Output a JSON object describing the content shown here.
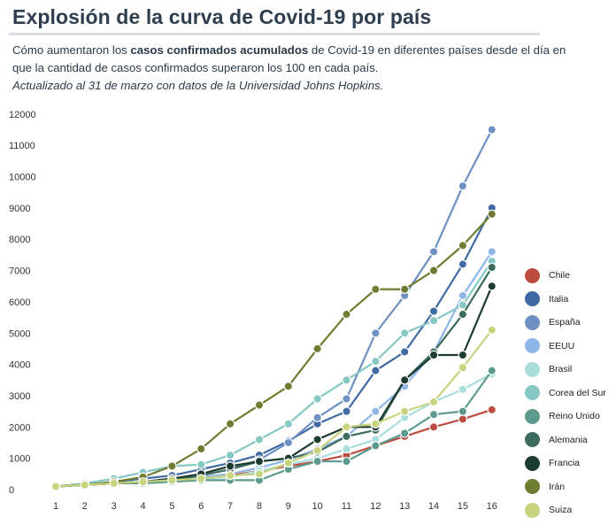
{
  "header": {
    "title": "Explosión de la curva de Covid-19 por país",
    "subtitle_before": "Cómo aumentaron los ",
    "subtitle_bold": "casos confirmados acumulados",
    "subtitle_after": " de Covid-19 en diferentes países desde el día en que la cantidad de casos confirmados superaron los 100 en cada país.",
    "updated": "Actualizado al 31 de marzo con datos de la Universidad Johns Hopkins."
  },
  "chart_data": {
    "type": "line",
    "title": "Explosión de la curva de Covid-19 por país",
    "xlabel": "",
    "ylabel": "",
    "x": [
      1,
      2,
      3,
      4,
      5,
      6,
      7,
      8,
      9,
      10,
      11,
      12,
      13,
      14,
      15,
      16
    ],
    "ylim": [
      0,
      12000
    ],
    "yticks": [
      0,
      1000,
      2000,
      3000,
      4000,
      5000,
      6000,
      7000,
      8000,
      9000,
      10000,
      11000,
      12000
    ],
    "grid": false,
    "legend_position": "right",
    "series": [
      {
        "name": "Chile",
        "color": "#bd4b3f",
        "values": [
          100,
          150,
          200,
          250,
          300,
          350,
          450,
          600,
          750,
          900,
          1100,
          1400,
          1700,
          2000,
          2250,
          2550
        ]
      },
      {
        "name": "Italia",
        "color": "#3f6aa3",
        "values": [
          100,
          150,
          250,
          350,
          450,
          650,
          850,
          1100,
          1550,
          2100,
          2500,
          3800,
          4400,
          5700,
          7200,
          9000
        ]
      },
      {
        "name": "España",
        "color": "#6f90c2",
        "values": [
          100,
          150,
          200,
          250,
          350,
          450,
          650,
          950,
          1500,
          2300,
          2900,
          5000,
          6200,
          7600,
          9700,
          11500
        ]
      },
      {
        "name": "EEUU",
        "color": "#8eb6e6",
        "values": [
          100,
          150,
          200,
          250,
          300,
          400,
          500,
          700,
          950,
          1300,
          1700,
          2500,
          3300,
          4400,
          6200,
          7600
        ]
      },
      {
        "name": "Brasil",
        "color": "#a9dedd",
        "values": [
          100,
          150,
          200,
          250,
          300,
          350,
          400,
          600,
          800,
          1000,
          1300,
          1600,
          2300,
          2800,
          3200,
          3700
        ]
      },
      {
        "name": "Corea del Sur",
        "color": "#86c8c4",
        "values": [
          100,
          200,
          350,
          550,
          750,
          800,
          1100,
          1600,
          2100,
          2900,
          3500,
          4100,
          5000,
          5400,
          5900,
          7300
        ]
      },
      {
        "name": "Reino Unido",
        "color": "#5b9a8c",
        "values": [
          100,
          150,
          200,
          200,
          250,
          300,
          300,
          300,
          650,
          900,
          900,
          1400,
          1800,
          2400,
          2500,
          3800
        ]
      },
      {
        "name": "Alemania",
        "color": "#3d6b5d",
        "values": [
          100,
          150,
          200,
          250,
          300,
          450,
          650,
          900,
          1000,
          1200,
          1700,
          1900,
          3500,
          4400,
          5600,
          7100
        ]
      },
      {
        "name": "Francia",
        "color": "#1d3b2f",
        "values": [
          100,
          150,
          200,
          250,
          350,
          500,
          750,
          900,
          1000,
          1600,
          2000,
          2000,
          3500,
          4300,
          4300,
          6500
        ]
      },
      {
        "name": "Irán",
        "color": "#6e7d31",
        "values": [
          100,
          150,
          250,
          400,
          750,
          1300,
          2100,
          2700,
          3300,
          4500,
          5600,
          6400,
          6400,
          7000,
          7800,
          8800
        ]
      },
      {
        "name": "Suiza",
        "color": "#c7d37f",
        "values": [
          100,
          150,
          200,
          250,
          300,
          350,
          450,
          500,
          850,
          1250,
          2000,
          2100,
          2500,
          2800,
          3900,
          5100
        ]
      }
    ]
  }
}
